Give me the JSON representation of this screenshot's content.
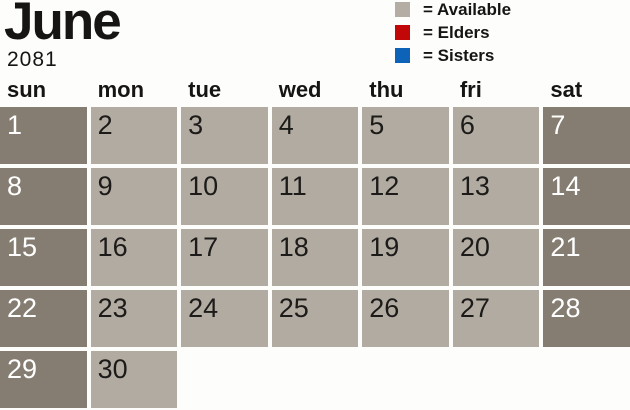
{
  "calendar": {
    "month": "June",
    "year": "2081",
    "day_headers": [
      "sun",
      "mon",
      "tue",
      "wed",
      "thu",
      "fri",
      "sat"
    ],
    "days": [
      1,
      2,
      3,
      4,
      5,
      6,
      7,
      8,
      9,
      10,
      11,
      12,
      13,
      14,
      15,
      16,
      17,
      18,
      19,
      20,
      21,
      22,
      23,
      24,
      25,
      26,
      27,
      28,
      29,
      30
    ],
    "total_grid_cells": 35
  },
  "legend": {
    "items": [
      {
        "name": "available",
        "label": "= Available",
        "color": "#b4ada3"
      },
      {
        "name": "elders",
        "label": "= Elders",
        "color": "#c10708"
      },
      {
        "name": "sisters",
        "label": "= Sisters",
        "color": "#0c63b8"
      }
    ]
  },
  "colors": {
    "weekday_cell": "#b2aba1",
    "weekend_cell": "#857d71",
    "weekday_text": "#1c1b19",
    "weekend_text": "#ffffff",
    "background": "#fdfefb"
  }
}
